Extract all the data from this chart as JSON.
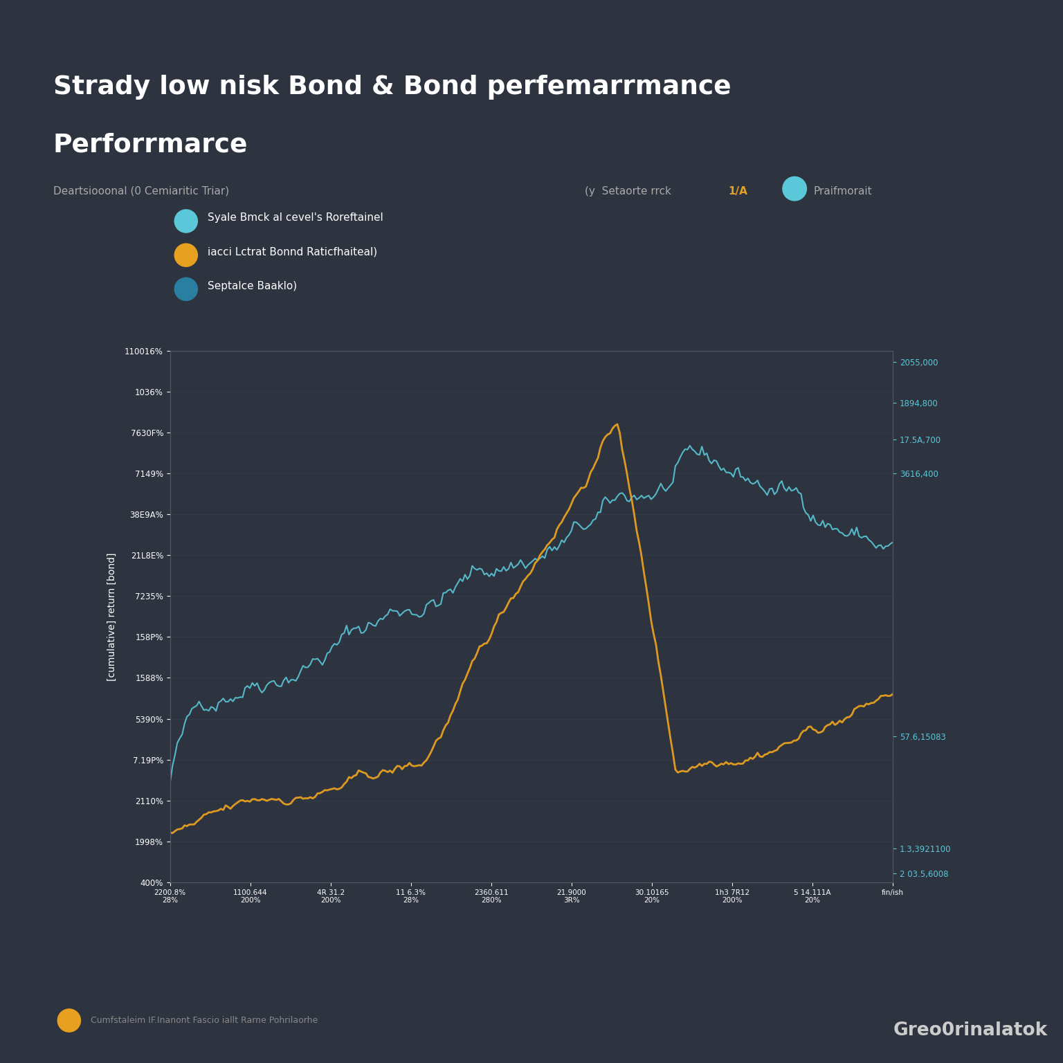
{
  "title_line1": "Strady low nisk Bond & Bond perfemarrmance",
  "title_line2": "Perforrmarce",
  "subtitle_left": "Deartsiooonal (0 Cemiaritic Triar)",
  "subtitle_right_gray": "(y  Setaorte rrck ",
  "subtitle_right_orange": "1/A",
  "subtitle_right_end": "   Praifmorait",
  "legend1_label": "Syale Bmck al cevel's Roreftainel",
  "legend2_label": "iacci Lctrat Bonnd Raticfhaiteal)",
  "legend3_label": "Septalce Baaklo)",
  "ylabel": "[cumulative] return [bond]",
  "background_color": "#2e3340",
  "plot_bg_color": "#2e3340",
  "grid_color": "#3e4555",
  "text_color": "#ffffff",
  "line1_color": "#5ac8d8",
  "line2_color": "#e8a020",
  "line3_color": "#2a7fa0",
  "n_points": 300,
  "ylim_left": [
    -0.4,
    1.2
  ],
  "ylim_right": [
    0,
    2100000
  ],
  "x_labels": [
    "2200.8%\n28%",
    "1100.644\n200%",
    "4R 31.2\n200%",
    "11 6.3%\n28%",
    "2360.611\n280%",
    "21.9000\n3R%",
    "30.10165\n20%",
    "1h3 7R12\n200%",
    "5 14.111A\n20%",
    "fin/ish"
  ],
  "y_labels_left": [
    "110016%",
    "1036%",
    "7630F%",
    "7149%",
    "38E9A%",
    "21L8E%",
    "7235%",
    "158P%",
    "1588%",
    "5390%",
    "7.19P%",
    "2110%",
    "1998%",
    "400%"
  ],
  "y_labels_right": [
    "2055,000",
    "17.5A,700",
    "1894,800",
    "3616,400",
    "57.6,15083",
    "1.3,3921100",
    "2 03.5,6008"
  ],
  "footer": "Cumfstaleim IF.Inanont Fascio iallt Rarne Pohrilaorhe",
  "watermark": "Greo0rinalatok"
}
